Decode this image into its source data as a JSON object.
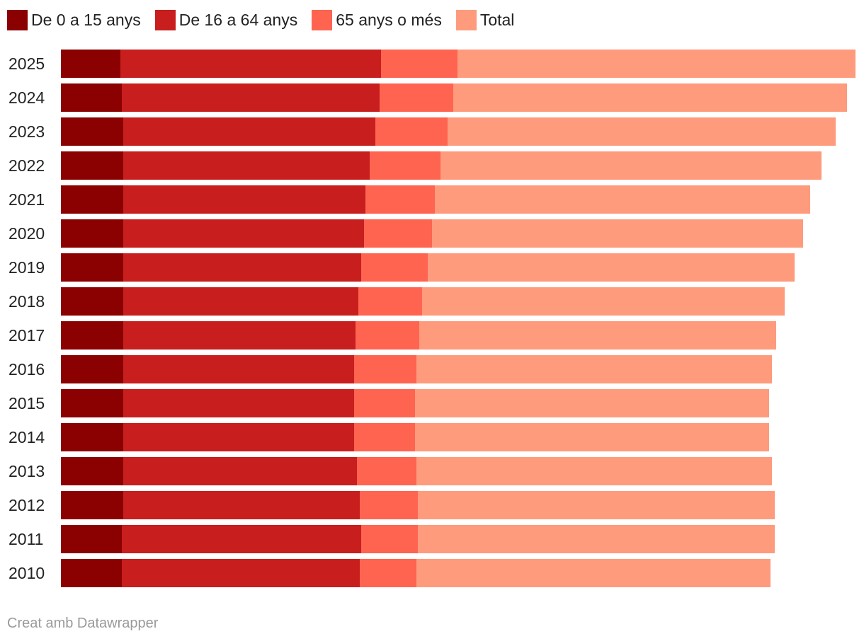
{
  "legend": {
    "items": [
      {
        "label": "De 0 a 15 anys",
        "color": "#8b0000"
      },
      {
        "label": "De 16 a 64 anys",
        "color": "#c81e1e"
      },
      {
        "label": "65 anys o més",
        "color": "#ff6450"
      },
      {
        "label": "Total",
        "color": "#ff9b7d"
      }
    ]
  },
  "credit": "Creat amb Datawrapper",
  "chart_data": {
    "type": "bar",
    "orientation": "horizontal",
    "stacked": true,
    "categories": [
      "2025",
      "2024",
      "2023",
      "2022",
      "2021",
      "2020",
      "2019",
      "2018",
      "2017",
      "2016",
      "2015",
      "2014",
      "2013",
      "2012",
      "2011",
      "2010"
    ],
    "series": [
      {
        "name": "De 0 a 15 anys",
        "color": "#8b0000",
        "values": [
          84,
          86,
          88,
          88,
          88,
          88,
          88,
          88,
          88,
          88,
          88,
          88,
          88,
          88,
          86,
          86
        ]
      },
      {
        "name": "De 16 a 64 anys",
        "color": "#c81e1e",
        "values": [
          368,
          364,
          356,
          348,
          342,
          340,
          336,
          332,
          328,
          326,
          326,
          326,
          330,
          334,
          338,
          336
        ]
      },
      {
        "name": "65 anys o més",
        "color": "#ff6450",
        "values": [
          108,
          104,
          102,
          100,
          98,
          96,
          94,
          90,
          90,
          88,
          86,
          86,
          84,
          82,
          80,
          80
        ]
      },
      {
        "name": "Total",
        "color": "#ff9b7d",
        "values": [
          562,
          556,
          548,
          538,
          530,
          524,
          518,
          512,
          504,
          502,
          500,
          500,
          502,
          504,
          504,
          500
        ]
      }
    ],
    "xlim": [
      0,
      1122
    ],
    "grid": false,
    "legend_position": "top-left"
  }
}
